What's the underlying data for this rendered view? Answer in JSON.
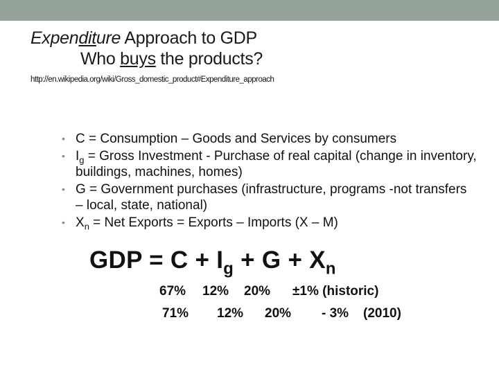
{
  "slide": {
    "title_line1_pre": "",
    "title_line1_em_a": "Expen",
    "title_line1_em_ul": "dit",
    "title_line1_em_b": "ure",
    "title_line1_rest": " Approach to GDP",
    "title_line2_pre": "Who ",
    "title_line2_ul": "buys",
    "title_line2_rest": " the products?",
    "url": "http://en.wikipedia.org/wiki/Gross_domestic_product#Expenditure_approach",
    "bullets": [
      {
        "var": "C",
        "sub": "",
        "text": " = Consumption – Goods and Services by consumers"
      },
      {
        "var": "I",
        "sub": "g",
        "text": " = Gross Investment -  Purchase of real capital (change in inventory, buildings, machines, homes)"
      },
      {
        "var": "G",
        "sub": "",
        "text": " = Government purchases (infrastructure, programs -not transfers – local, state, national)"
      },
      {
        "var": "X",
        "sub": "n",
        "text": " =  Net Exports = Exports – Imports (X – M)"
      }
    ],
    "equation": {
      "a": "GDP = C + I",
      "sub_g": "g",
      "b": " + G + X",
      "sub_n": "n"
    },
    "shares": {
      "historic": [
        "67%",
        "12%",
        "20%",
        "±1% (historic)"
      ],
      "recent": [
        "71%",
        "12%",
        "20%",
        "- 3%",
        "(2010)"
      ]
    }
  }
}
